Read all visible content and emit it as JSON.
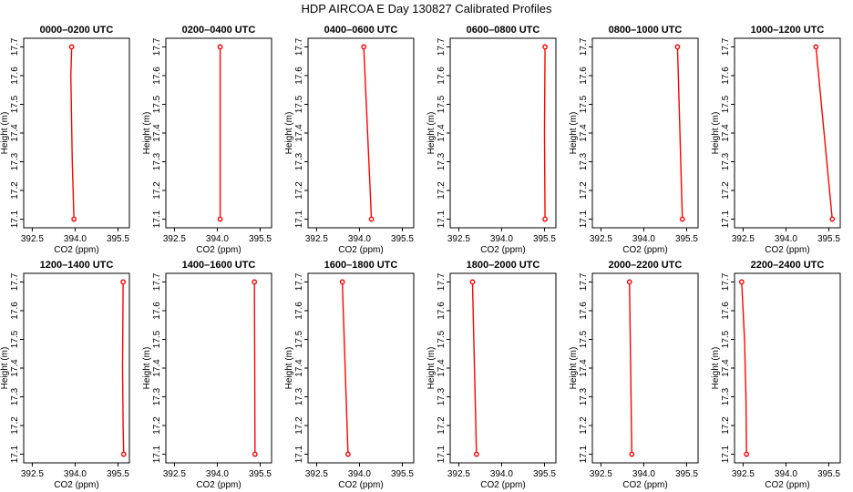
{
  "page": {
    "title": "HDP AIRCOA E  Day 130827  Calibrated Profiles"
  },
  "colors": {
    "series": "#ff0000",
    "axes": "#000000",
    "background": "#ffffff"
  },
  "chart_data": [
    {
      "type": "line",
      "title": "0000–0200 UTC",
      "xlabel": "CO2 (ppm)",
      "ylabel": "Height (m)",
      "xlim": [
        392.2,
        395.9
      ],
      "ylim": [
        17.07,
        17.73
      ],
      "xticks": [
        "392.5",
        "394.0",
        "395.5"
      ],
      "yticks": [
        "17.1",
        "17.2",
        "17.3",
        "17.4",
        "17.5",
        "17.6",
        "17.7"
      ],
      "x": [
        393.88,
        393.85,
        393.9,
        393.96
      ],
      "y": [
        17.7,
        17.6,
        17.3,
        17.1
      ]
    },
    {
      "type": "line",
      "title": "0200–0400 UTC",
      "xlabel": "CO2 (ppm)",
      "ylabel": "Height (m)",
      "xlim": [
        392.2,
        395.9
      ],
      "ylim": [
        17.07,
        17.73
      ],
      "xticks": [
        "392.5",
        "394.0",
        "395.5"
      ],
      "yticks": [
        "17.1",
        "17.2",
        "17.3",
        "17.4",
        "17.5",
        "17.6",
        "17.7"
      ],
      "x": [
        394.1,
        394.1
      ],
      "y": [
        17.7,
        17.1
      ]
    },
    {
      "type": "line",
      "title": "0400–0600 UTC",
      "xlabel": "CO2 (ppm)",
      "ylabel": "Height (m)",
      "xlim": [
        392.2,
        395.9
      ],
      "ylim": [
        17.07,
        17.73
      ],
      "xticks": [
        "392.5",
        "394.0",
        "395.5"
      ],
      "yticks": [
        "17.1",
        "17.2",
        "17.3",
        "17.4",
        "17.5",
        "17.6",
        "17.7"
      ],
      "x": [
        394.15,
        394.42
      ],
      "y": [
        17.7,
        17.1
      ]
    },
    {
      "type": "line",
      "title": "0600–0800 UTC",
      "xlabel": "CO2 (ppm)",
      "ylabel": "Height (m)",
      "xlim": [
        392.2,
        395.9
      ],
      "ylim": [
        17.07,
        17.73
      ],
      "xticks": [
        "392.5",
        "394.0",
        "395.5"
      ],
      "yticks": [
        "17.1",
        "17.2",
        "17.3",
        "17.4",
        "17.5",
        "17.6",
        "17.7"
      ],
      "x": [
        395.52,
        395.5,
        395.52
      ],
      "y": [
        17.7,
        17.4,
        17.1
      ]
    },
    {
      "type": "line",
      "title": "0800–1000 UTC",
      "xlabel": "CO2 (ppm)",
      "ylabel": "Height (m)",
      "xlim": [
        392.2,
        395.9
      ],
      "ylim": [
        17.07,
        17.73
      ],
      "xticks": [
        "392.5",
        "394.0",
        "395.5"
      ],
      "yticks": [
        "17.1",
        "17.2",
        "17.3",
        "17.4",
        "17.5",
        "17.6",
        "17.7"
      ],
      "x": [
        395.18,
        395.35
      ],
      "y": [
        17.7,
        17.1
      ]
    },
    {
      "type": "line",
      "title": "1000–1200 UTC",
      "xlabel": "CO2 (ppm)",
      "ylabel": "Height (m)",
      "xlim": [
        392.2,
        395.9
      ],
      "ylim": [
        17.07,
        17.73
      ],
      "xticks": [
        "392.5",
        "394.0",
        "395.5"
      ],
      "yticks": [
        "17.1",
        "17.2",
        "17.3",
        "17.4",
        "17.5",
        "17.6",
        "17.7"
      ],
      "x": [
        395.05,
        395.62
      ],
      "y": [
        17.7,
        17.1
      ]
    },
    {
      "type": "line",
      "title": "1200–1400 UTC",
      "xlabel": "CO2 (ppm)",
      "ylabel": "Height (m)",
      "xlim": [
        392.2,
        395.9
      ],
      "ylim": [
        17.07,
        17.73
      ],
      "xticks": [
        "392.5",
        "394.0",
        "395.5"
      ],
      "yticks": [
        "17.1",
        "17.2",
        "17.3",
        "17.4",
        "17.5",
        "17.6",
        "17.7"
      ],
      "x": [
        395.68,
        395.66,
        395.68,
        395.7
      ],
      "y": [
        17.7,
        17.4,
        17.2,
        17.1
      ]
    },
    {
      "type": "line",
      "title": "1400–1600 UTC",
      "xlabel": "CO2 (ppm)",
      "ylabel": "Height (m)",
      "xlim": [
        392.2,
        395.9
      ],
      "ylim": [
        17.07,
        17.73
      ],
      "xticks": [
        "392.5",
        "394.0",
        "395.5"
      ],
      "yticks": [
        "17.1",
        "17.2",
        "17.3",
        "17.4",
        "17.5",
        "17.6",
        "17.7"
      ],
      "x": [
        395.3,
        395.32
      ],
      "y": [
        17.7,
        17.1
      ]
    },
    {
      "type": "line",
      "title": "1600–1800 UTC",
      "xlabel": "CO2 (ppm)",
      "ylabel": "Height (m)",
      "xlim": [
        392.2,
        395.9
      ],
      "ylim": [
        17.07,
        17.73
      ],
      "xticks": [
        "392.5",
        "394.0",
        "395.5"
      ],
      "yticks": [
        "17.1",
        "17.2",
        "17.3",
        "17.4",
        "17.5",
        "17.6",
        "17.7"
      ],
      "x": [
        393.4,
        393.6
      ],
      "y": [
        17.7,
        17.1
      ]
    },
    {
      "type": "line",
      "title": "1800–2000 UTC",
      "xlabel": "CO2 (ppm)",
      "ylabel": "Height (m)",
      "xlim": [
        392.2,
        395.9
      ],
      "ylim": [
        17.07,
        17.73
      ],
      "xticks": [
        "392.5",
        "394.0",
        "395.5"
      ],
      "yticks": [
        "17.1",
        "17.2",
        "17.3",
        "17.4",
        "17.5",
        "17.6",
        "17.7"
      ],
      "x": [
        392.98,
        393.12
      ],
      "y": [
        17.7,
        17.1
      ]
    },
    {
      "type": "line",
      "title": "2000–2200 UTC",
      "xlabel": "CO2 (ppm)",
      "ylabel": "Height (m)",
      "xlim": [
        392.2,
        395.9
      ],
      "ylim": [
        17.07,
        17.73
      ],
      "xticks": [
        "392.5",
        "394.0",
        "395.5"
      ],
      "yticks": [
        "17.1",
        "17.2",
        "17.3",
        "17.4",
        "17.5",
        "17.6",
        "17.7"
      ],
      "x": [
        393.5,
        393.58
      ],
      "y": [
        17.7,
        17.1
      ]
    },
    {
      "type": "line",
      "title": "2200–2400 UTC",
      "xlabel": "CO2 (ppm)",
      "ylabel": "Height (m)",
      "xlim": [
        392.2,
        395.9
      ],
      "ylim": [
        17.07,
        17.73
      ],
      "xticks": [
        "392.5",
        "394.0",
        "395.5"
      ],
      "yticks": [
        "17.1",
        "17.2",
        "17.3",
        "17.4",
        "17.5",
        "17.6",
        "17.7"
      ],
      "x": [
        392.45,
        392.55,
        392.6,
        392.62
      ],
      "y": [
        17.7,
        17.5,
        17.3,
        17.1
      ]
    }
  ]
}
